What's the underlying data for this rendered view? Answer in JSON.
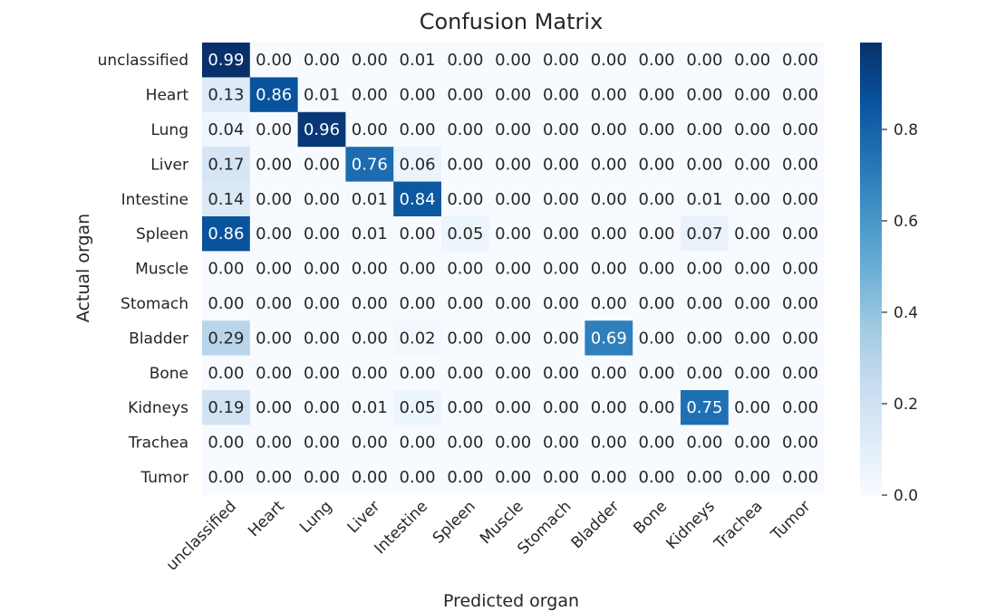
{
  "chart_data": {
    "type": "heatmap",
    "title": "Confusion Matrix",
    "xlabel": "Predicted organ",
    "ylabel": "Actual organ",
    "x_categories": [
      "unclassified",
      "Heart",
      "Lung",
      "Liver",
      "Intestine",
      "Spleen",
      "Muscle",
      "Stomach",
      "Bladder",
      "Bone",
      "Kidneys",
      "Trachea",
      "Tumor"
    ],
    "y_categories": [
      "unclassified",
      "Heart",
      "Lung",
      "Liver",
      "Intestine",
      "Spleen",
      "Muscle",
      "Stomach",
      "Bladder",
      "Bone",
      "Kidneys",
      "Trachea",
      "Tumor"
    ],
    "values": [
      [
        0.99,
        0.0,
        0.0,
        0.0,
        0.01,
        0.0,
        0.0,
        0.0,
        0.0,
        0.0,
        0.0,
        0.0,
        0.0
      ],
      [
        0.13,
        0.86,
        0.01,
        0.0,
        0.0,
        0.0,
        0.0,
        0.0,
        0.0,
        0.0,
        0.0,
        0.0,
        0.0
      ],
      [
        0.04,
        0.0,
        0.96,
        0.0,
        0.0,
        0.0,
        0.0,
        0.0,
        0.0,
        0.0,
        0.0,
        0.0,
        0.0
      ],
      [
        0.17,
        0.0,
        0.0,
        0.76,
        0.06,
        0.0,
        0.0,
        0.0,
        0.0,
        0.0,
        0.0,
        0.0,
        0.0
      ],
      [
        0.14,
        0.0,
        0.0,
        0.01,
        0.84,
        0.0,
        0.0,
        0.0,
        0.0,
        0.0,
        0.01,
        0.0,
        0.0
      ],
      [
        0.86,
        0.0,
        0.0,
        0.01,
        0.0,
        0.05,
        0.0,
        0.0,
        0.0,
        0.0,
        0.07,
        0.0,
        0.0
      ],
      [
        0.0,
        0.0,
        0.0,
        0.0,
        0.0,
        0.0,
        0.0,
        0.0,
        0.0,
        0.0,
        0.0,
        0.0,
        0.0
      ],
      [
        0.0,
        0.0,
        0.0,
        0.0,
        0.0,
        0.0,
        0.0,
        0.0,
        0.0,
        0.0,
        0.0,
        0.0,
        0.0
      ],
      [
        0.29,
        0.0,
        0.0,
        0.0,
        0.02,
        0.0,
        0.0,
        0.0,
        0.69,
        0.0,
        0.0,
        0.0,
        0.0
      ],
      [
        0.0,
        0.0,
        0.0,
        0.0,
        0.0,
        0.0,
        0.0,
        0.0,
        0.0,
        0.0,
        0.0,
        0.0,
        0.0
      ],
      [
        0.19,
        0.0,
        0.0,
        0.01,
        0.05,
        0.0,
        0.0,
        0.0,
        0.0,
        0.0,
        0.75,
        0.0,
        0.0
      ],
      [
        0.0,
        0.0,
        0.0,
        0.0,
        0.0,
        0.0,
        0.0,
        0.0,
        0.0,
        0.0,
        0.0,
        0.0,
        0.0
      ],
      [
        0.0,
        0.0,
        0.0,
        0.0,
        0.0,
        0.0,
        0.0,
        0.0,
        0.0,
        0.0,
        0.0,
        0.0,
        0.0
      ]
    ],
    "colorbar": {
      "range": [
        0.0,
        0.99
      ],
      "ticks": [
        0.0,
        0.2,
        0.4,
        0.6,
        0.8
      ],
      "tick_labels": [
        "0.0",
        "0.2",
        "0.4",
        "0.6",
        "0.8"
      ]
    },
    "colormap": "Blues",
    "colormap_stops": [
      "#f7fbff",
      "#deebf7",
      "#c6dbef",
      "#9ecae1",
      "#6baed6",
      "#4292c6",
      "#2171b5",
      "#08519c",
      "#08306b"
    ],
    "grid": false,
    "legend": "none"
  }
}
